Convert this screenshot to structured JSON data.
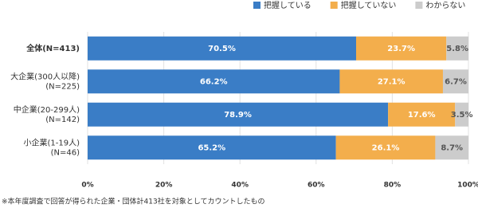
{
  "chart_data": {
    "type": "stacked-barh",
    "categories": [
      "全体(N=413)",
      "大企業(300人以降)\n(N=225)",
      "中企業(20-299人)\n(N=142)",
      "小企業(1-19人)\n(N=46)"
    ],
    "series": [
      {
        "name": "把握している",
        "color": "#3a7dc6",
        "label_color": "#ffffff",
        "values": [
          70.5,
          66.2,
          78.9,
          65.2
        ],
        "value_labels": [
          "70.5%",
          "66.2%",
          "78.9%",
          "65.2%"
        ]
      },
      {
        "name": "把握していない",
        "color": "#f3ae4c",
        "label_color": "#ffffff",
        "values": [
          23.7,
          27.1,
          17.6,
          26.1
        ],
        "value_labels": [
          "23.7%",
          "27.1%",
          "17.6%",
          "26.1%"
        ]
      },
      {
        "name": "わからない",
        "color": "#cccccc",
        "label_color": "#555555",
        "values": [
          5.8,
          6.7,
          3.5,
          8.7
        ],
        "value_labels": [
          "5.8%",
          "6.7%",
          "3.5%",
          "8.7%"
        ]
      }
    ],
    "xlim": [
      0,
      100
    ],
    "xticks": [
      {
        "value": 0,
        "label": "0%"
      },
      {
        "value": 20,
        "label": "20%"
      },
      {
        "value": 40,
        "label": "40%"
      },
      {
        "value": 60,
        "label": "60%"
      },
      {
        "value": 80,
        "label": "80%"
      },
      {
        "value": 100,
        "label": "100%"
      }
    ],
    "grid": true,
    "legend": "top-right",
    "footnote": "※本年度調査で回答が得られた企業・団体計413社を対象としてカウントしたもの"
  }
}
